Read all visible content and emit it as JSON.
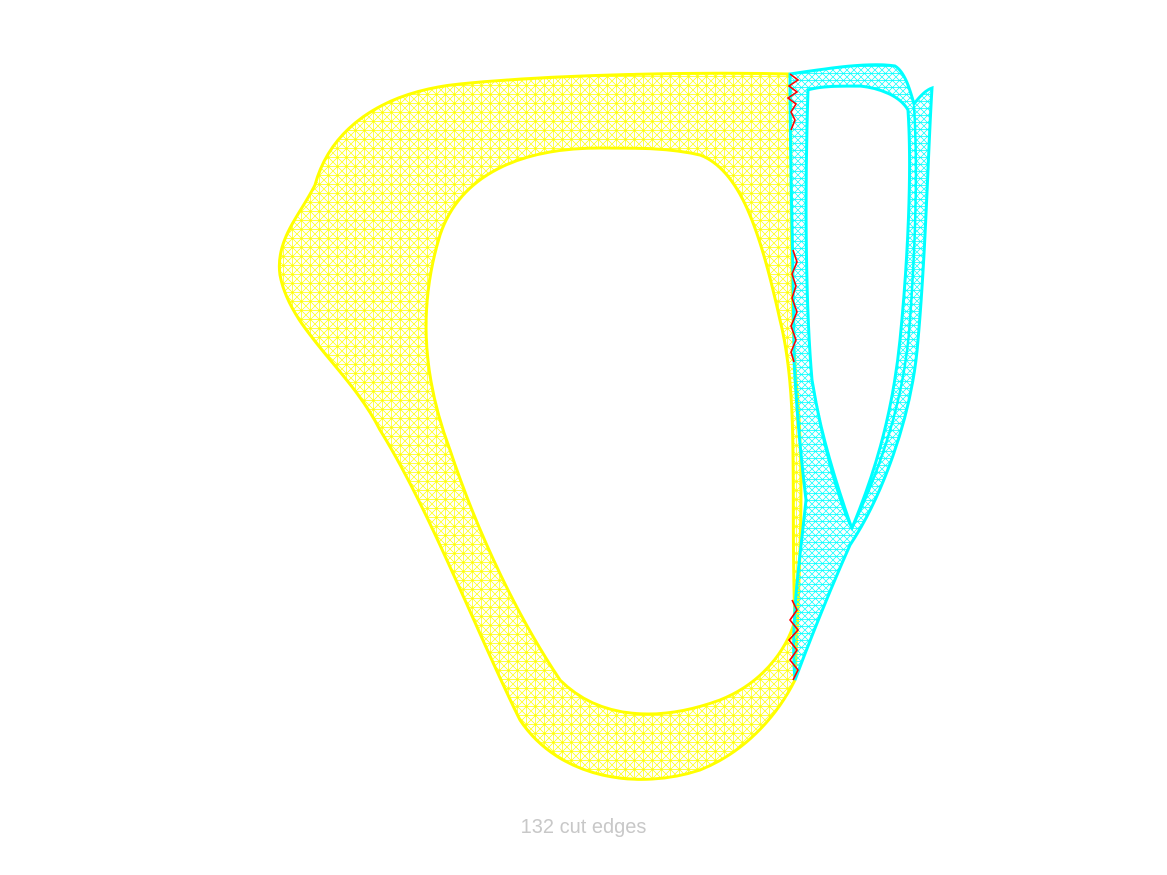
{
  "caption": "132 cut edges",
  "colors": {
    "partition_a": "#ffff00",
    "partition_b": "#00ffff",
    "cut_edges": "#ff0000",
    "caption": "#c8c8c8",
    "background": "#ffffff"
  }
}
